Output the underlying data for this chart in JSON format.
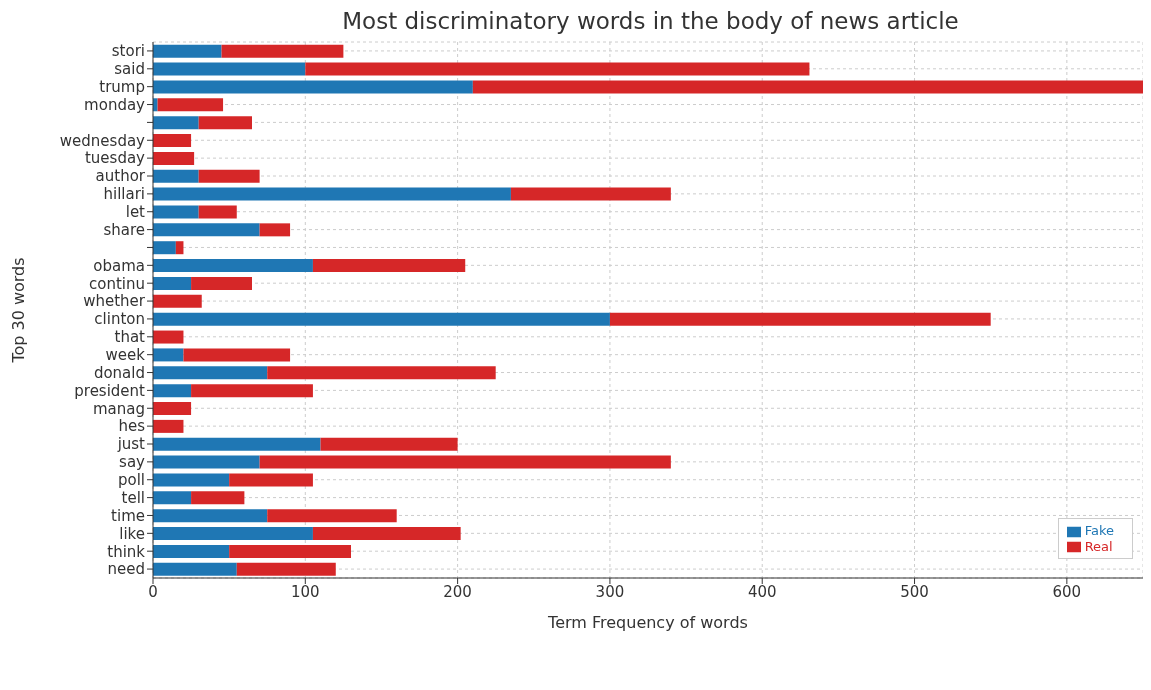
{
  "chart_data": {
    "type": "bar",
    "orientation": "horizontal",
    "stacked": true,
    "title": "Most discriminatory words in the body of news article",
    "xlabel": "Term Frequency of words",
    "ylabel": "Top 30 words",
    "categories": [
      "stori",
      "said",
      "trump",
      "monday",
      null,
      "wednesday",
      "tuesday",
      "author",
      "hillari",
      "let",
      "share",
      null,
      "obama",
      "continu",
      "whether",
      "clinton",
      "that",
      "week",
      "donald",
      "president",
      "manag",
      "hes",
      "just",
      "say",
      "poll",
      "tell",
      "time",
      "like",
      "think",
      "need"
    ],
    "series": [
      {
        "name": "Fake",
        "color": "#1f77b4",
        "values": [
          45,
          100,
          210,
          3,
          30,
          0,
          0,
          30,
          235,
          30,
          70,
          15,
          105,
          25,
          0,
          300,
          0,
          20,
          75,
          25,
          0,
          0,
          110,
          70,
          50,
          25,
          75,
          105,
          50,
          55
        ]
      },
      {
        "name": "Real",
        "color": "#d62728",
        "values": [
          80,
          331,
          440,
          43,
          35,
          25,
          27,
          40,
          105,
          25,
          20,
          5,
          100,
          40,
          32,
          250,
          20,
          70,
          150,
          80,
          25,
          20,
          90,
          270,
          55,
          35,
          85,
          97,
          80,
          65
        ]
      }
    ],
    "xlim": [
      0,
      650
    ],
    "xticks": [
      0,
      100,
      200,
      300,
      400,
      500,
      600
    ],
    "grid": true,
    "legend": "bottom right"
  }
}
